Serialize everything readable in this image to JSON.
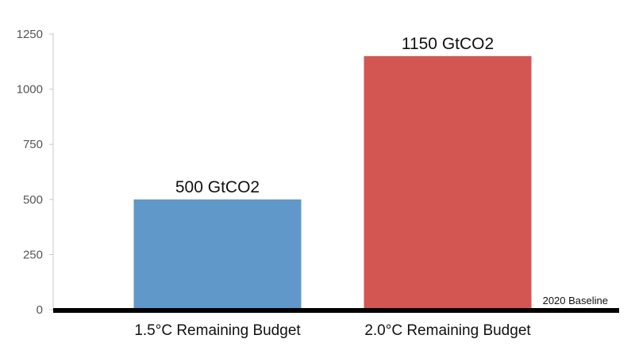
{
  "chart_data": {
    "type": "bar",
    "categories": [
      "1.5°C Remaining Budget",
      "2.0°C Remaining Budget"
    ],
    "values": [
      500,
      1150
    ],
    "data_labels": [
      "500 GtCO2",
      "1150 GtCO2"
    ],
    "colors": [
      "#6098c9",
      "#d35652"
    ],
    "ylim": [
      0,
      1250
    ],
    "yticks": [
      0,
      250,
      500,
      750,
      1000,
      1250
    ],
    "ytick_labels": [
      "0",
      "250",
      "500",
      "750",
      "1000",
      "1250"
    ],
    "grid": false,
    "baseline_label": "2020 Baseline",
    "title": "",
    "xlabel": "",
    "ylabel": ""
  }
}
